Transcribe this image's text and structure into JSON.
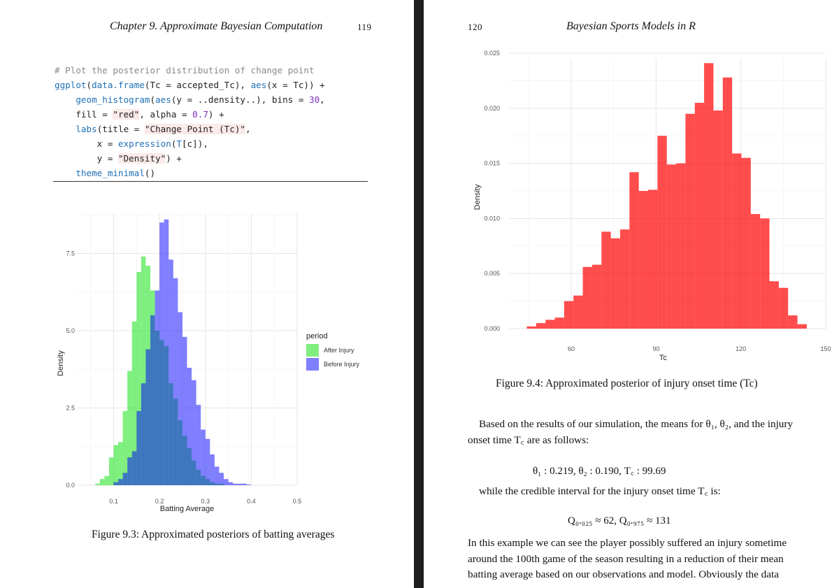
{
  "left_page": {
    "header": "Chapter 9. Approximate Bayesian Computation",
    "page_number": "119",
    "code": {
      "comment": "# Plot the posterior distribution of change point",
      "l2_fn": "ggplot",
      "l2_a": "(",
      "l2_fn2": "data.frame",
      "l2_b": "(Tc = accepted_Tc), ",
      "l2_fn3": "aes",
      "l2_c": "(x = Tc)) +",
      "l3_ind": "    ",
      "l3_fn": "geom_histogram",
      "l3_a": "(",
      "l3_fn2": "aes",
      "l3_b": "(y = ..density..), bins = ",
      "l3_num": "30",
      "l3_c": ",",
      "l4_a": "    fill = ",
      "l4_str": "\"red\"",
      "l4_b": ", alpha = ",
      "l4_num": "0.7",
      "l4_c": ") +",
      "l5_a": "    ",
      "l5_fn": "labs",
      "l5_b": "(title = ",
      "l5_str": "\"Change Point (Tc)\"",
      "l5_c": ",",
      "l6_a": "        x = ",
      "l6_fn": "expression",
      "l6_b": "(",
      "l6_fn2": "T",
      "l6_c": "[c]),",
      "l7_a": "        y = ",
      "l7_str": "\"Density\"",
      "l7_b": ") +",
      "l8_a": "    ",
      "l8_fn": "theme_minimal",
      "l8_b": "()"
    },
    "figure_caption": "Figure 9.3: Approximated posteriors of batting averages"
  },
  "right_page": {
    "page_number": "120",
    "header": "Bayesian Sports Models in R",
    "figure_caption": "Figure 9.4: Approximated posterior of injury onset time (Tc)",
    "para1": "Based on the results of our simulation, the means for θ₁, θ₂, and the injury onset time T꜀ are as follows:",
    "means_line": "θ₁ : 0.219,    θ₂ : 0.190,    T꜀ : 99.69",
    "para2": "while the credible interval for the injury onset time T꜀ is:",
    "interval_line": "Q₀.₀₂₅ ≈ 62,    Q₀.₉₇₅ ≈ 131",
    "para3": "In this example we can see the player possibly suffered an injury sometime around the 100th game of the season resulting in a reduction of their mean batting average based on our observations and model. Obviously the data"
  },
  "chart_data": [
    {
      "type": "histogram",
      "xlabel": "Batting Average",
      "ylabel": "Density",
      "xlim": [
        0.02,
        0.5
      ],
      "ylim": [
        0,
        8.8
      ],
      "x_ticks": [
        "0.1",
        "0.2",
        "0.3",
        "0.4",
        "0.5"
      ],
      "x_tick_values": [
        0.1,
        0.2,
        0.3,
        0.4,
        0.5
      ],
      "y_ticks": [
        "0.0",
        "2.5",
        "5.0",
        "7.5"
      ],
      "y_tick_values": [
        0,
        2.5,
        5.0,
        7.5
      ],
      "grid": true,
      "legend_title": "period",
      "legend_position": "right",
      "bin_width": 0.01,
      "series": [
        {
          "name": "After Injury",
          "color": "#00e000",
          "bin_starts": [
            0.06,
            0.07,
            0.08,
            0.09,
            0.1,
            0.11,
            0.12,
            0.13,
            0.14,
            0.15,
            0.16,
            0.17,
            0.18,
            0.19,
            0.2,
            0.21,
            0.22,
            0.23,
            0.24,
            0.25,
            0.26,
            0.27,
            0.28,
            0.29,
            0.3,
            0.31,
            0.32,
            0.33,
            0.34,
            0.35
          ],
          "values": [
            0.05,
            0.2,
            0.3,
            0.9,
            1.3,
            1.4,
            2.4,
            3.7,
            5.3,
            6.9,
            7.4,
            7.1,
            6.3,
            5.0,
            4.7,
            4.5,
            3.3,
            2.8,
            2.1,
            1.6,
            1.2,
            0.8,
            0.5,
            0.3,
            0.2,
            0.1,
            0.05,
            0.05,
            0,
            0
          ]
        },
        {
          "name": "Before Injury",
          "color": "#0000ff",
          "bin_starts": [
            0.1,
            0.11,
            0.12,
            0.13,
            0.14,
            0.15,
            0.16,
            0.17,
            0.18,
            0.19,
            0.2,
            0.21,
            0.22,
            0.23,
            0.24,
            0.25,
            0.26,
            0.27,
            0.28,
            0.29,
            0.3,
            0.31,
            0.32,
            0.33,
            0.34,
            0.35,
            0.36,
            0.37,
            0.38,
            0.39
          ],
          "values": [
            0.1,
            0.2,
            0.4,
            0.9,
            1.1,
            2.4,
            3.3,
            4.4,
            5.5,
            6.3,
            8.5,
            8.6,
            7.3,
            6.7,
            5.6,
            4.8,
            3.8,
            3.4,
            2.6,
            1.8,
            1.5,
            1.0,
            0.6,
            0.4,
            0.2,
            0.1,
            0.05,
            0.05,
            0.05,
            0.02
          ]
        }
      ],
      "alpha": 0.5
    },
    {
      "type": "histogram",
      "xlabel": "Tc",
      "ylabel": "Density",
      "xlim": [
        38,
        150
      ],
      "ylim": [
        0,
        0.0245
      ],
      "x_ticks": [
        "60",
        "90",
        "120",
        "150"
      ],
      "x_tick_values": [
        60,
        90,
        120,
        150
      ],
      "y_ticks": [
        "0.000",
        "0.005",
        "0.010",
        "0.015",
        "0.020",
        "0.025"
      ],
      "y_tick_values": [
        0,
        0.005,
        0.01,
        0.015,
        0.02,
        0.025
      ],
      "grid": true,
      "bin_width": 3.3,
      "color": "#ff0000",
      "alpha": 0.7,
      "bin_starts": [
        44.3,
        47.6,
        50.9,
        54.2,
        57.5,
        60.8,
        64.1,
        67.4,
        70.7,
        74.0,
        77.3,
        80.6,
        83.9,
        87.2,
        90.5,
        93.8,
        97.1,
        100.4,
        103.7,
        107.0,
        110.3,
        113.6,
        116.9,
        120.2,
        123.5,
        126.8,
        130.1,
        133.4,
        136.7,
        140.0
      ],
      "values": [
        0.0002,
        0.0005,
        0.0008,
        0.001,
        0.0025,
        0.003,
        0.0056,
        0.0058,
        0.0088,
        0.0082,
        0.009,
        0.0142,
        0.0125,
        0.0126,
        0.0175,
        0.0149,
        0.015,
        0.0195,
        0.0205,
        0.0241,
        0.0198,
        0.0228,
        0.0159,
        0.0155,
        0.0104,
        0.01,
        0.0043,
        0.0037,
        0.0012,
        0.0004
      ]
    }
  ]
}
